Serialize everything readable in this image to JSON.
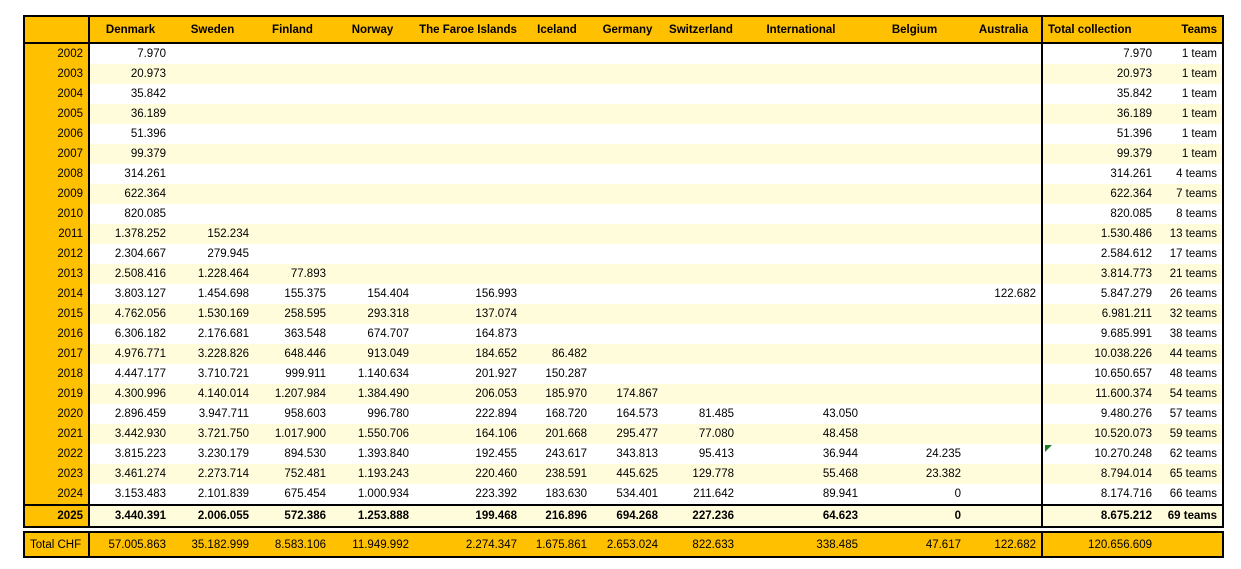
{
  "colors": {
    "header_orange": "#FFC000",
    "band_yellow": "#FFFCDB",
    "border_black": "#000000",
    "error_indicator_green": "#1E7B1E"
  },
  "table": {
    "corner_label": "",
    "columns": [
      "Denmark",
      "Sweden",
      "Finland",
      "Norway",
      "The Faroe Islands",
      "Iceland",
      "Germany",
      "Switzerland",
      "International",
      "Belgium",
      "Australia"
    ],
    "total_collection_header": "Total collection",
    "teams_header": "Teams",
    "rows": [
      {
        "year": "2002",
        "values": [
          "7.970",
          "",
          "",
          "",
          "",
          "",
          "",
          "",
          "",
          "",
          ""
        ],
        "total": "7.970",
        "teams": "1 team"
      },
      {
        "year": "2003",
        "values": [
          "20.973",
          "",
          "",
          "",
          "",
          "",
          "",
          "",
          "",
          "",
          ""
        ],
        "total": "20.973",
        "teams": "1 team"
      },
      {
        "year": "2004",
        "values": [
          "35.842",
          "",
          "",
          "",
          "",
          "",
          "",
          "",
          "",
          "",
          ""
        ],
        "total": "35.842",
        "teams": "1 team"
      },
      {
        "year": "2005",
        "values": [
          "36.189",
          "",
          "",
          "",
          "",
          "",
          "",
          "",
          "",
          "",
          ""
        ],
        "total": "36.189",
        "teams": "1 team"
      },
      {
        "year": "2006",
        "values": [
          "51.396",
          "",
          "",
          "",
          "",
          "",
          "",
          "",
          "",
          "",
          ""
        ],
        "total": "51.396",
        "teams": "1 team"
      },
      {
        "year": "2007",
        "values": [
          "99.379",
          "",
          "",
          "",
          "",
          "",
          "",
          "",
          "",
          "",
          ""
        ],
        "total": "99.379",
        "teams": "1 team"
      },
      {
        "year": "2008",
        "values": [
          "314.261",
          "",
          "",
          "",
          "",
          "",
          "",
          "",
          "",
          "",
          ""
        ],
        "total": "314.261",
        "teams": "4 teams"
      },
      {
        "year": "2009",
        "values": [
          "622.364",
          "",
          "",
          "",
          "",
          "",
          "",
          "",
          "",
          "",
          ""
        ],
        "total": "622.364",
        "teams": "7 teams"
      },
      {
        "year": "2010",
        "values": [
          "820.085",
          "",
          "",
          "",
          "",
          "",
          "",
          "",
          "",
          "",
          ""
        ],
        "total": "820.085",
        "teams": "8 teams"
      },
      {
        "year": "2011",
        "values": [
          "1.378.252",
          "152.234",
          "",
          "",
          "",
          "",
          "",
          "",
          "",
          "",
          ""
        ],
        "total": "1.530.486",
        "teams": "13 teams"
      },
      {
        "year": "2012",
        "values": [
          "2.304.667",
          "279.945",
          "",
          "",
          "",
          "",
          "",
          "",
          "",
          "",
          ""
        ],
        "total": "2.584.612",
        "teams": "17 teams"
      },
      {
        "year": "2013",
        "values": [
          "2.508.416",
          "1.228.464",
          "77.893",
          "",
          "",
          "",
          "",
          "",
          "",
          "",
          ""
        ],
        "total": "3.814.773",
        "teams": "21 teams"
      },
      {
        "year": "2014",
        "values": [
          "3.803.127",
          "1.454.698",
          "155.375",
          "154.404",
          "156.993",
          "",
          "",
          "",
          "",
          "",
          "122.682"
        ],
        "total": "5.847.279",
        "teams": "26 teams"
      },
      {
        "year": "2015",
        "values": [
          "4.762.056",
          "1.530.169",
          "258.595",
          "293.318",
          "137.074",
          "",
          "",
          "",
          "",
          "",
          ""
        ],
        "total": "6.981.211",
        "teams": "32 teams"
      },
      {
        "year": "2016",
        "values": [
          "6.306.182",
          "2.176.681",
          "363.548",
          "674.707",
          "164.873",
          "",
          "",
          "",
          "",
          "",
          ""
        ],
        "total": "9.685.991",
        "teams": "38 teams"
      },
      {
        "year": "2017",
        "values": [
          "4.976.771",
          "3.228.826",
          "648.446",
          "913.049",
          "184.652",
          "86.482",
          "",
          "",
          "",
          "",
          ""
        ],
        "total": "10.038.226",
        "teams": "44 teams"
      },
      {
        "year": "2018",
        "values": [
          "4.447.177",
          "3.710.721",
          "999.911",
          "1.140.634",
          "201.927",
          "150.287",
          "",
          "",
          "",
          "",
          ""
        ],
        "total": "10.650.657",
        "teams": "48 teams"
      },
      {
        "year": "2019",
        "values": [
          "4.300.996",
          "4.140.014",
          "1.207.984",
          "1.384.490",
          "206.053",
          "185.970",
          "174.867",
          "",
          "",
          "",
          ""
        ],
        "total": "11.600.374",
        "teams": "54 teams"
      },
      {
        "year": "2020",
        "values": [
          "2.896.459",
          "3.947.711",
          "958.603",
          "996.780",
          "222.894",
          "168.720",
          "164.573",
          "81.485",
          "43.050",
          "",
          ""
        ],
        "total": "9.480.276",
        "teams": "57 teams"
      },
      {
        "year": "2021",
        "values": [
          "3.442.930",
          "3.721.750",
          "1.017.900",
          "1.550.706",
          "164.106",
          "201.668",
          "295.477",
          "77.080",
          "48.458",
          "",
          ""
        ],
        "total": "10.520.073",
        "teams": "59 teams"
      },
      {
        "year": "2022",
        "values": [
          "3.815.223",
          "3.230.179",
          "894.530",
          "1.393.840",
          "192.455",
          "243.617",
          "343.813",
          "95.413",
          "36.944",
          "24.235",
          ""
        ],
        "total": "10.270.248",
        "teams": "62 teams",
        "error_indicator": true
      },
      {
        "year": "2023",
        "values": [
          "3.461.274",
          "2.273.714",
          "752.481",
          "1.193.243",
          "220.460",
          "238.591",
          "445.625",
          "129.778",
          "55.468",
          "23.382",
          ""
        ],
        "total": "8.794.014",
        "teams": "65 teams"
      },
      {
        "year": "2024",
        "values": [
          "3.153.483",
          "2.101.839",
          "675.454",
          "1.000.934",
          "223.392",
          "183.630",
          "534.401",
          "211.642",
          "89.941",
          "0",
          ""
        ],
        "total": "8.174.716",
        "teams": "66 teams"
      },
      {
        "year": "2025",
        "values": [
          "3.440.391",
          "2.006.055",
          "572.386",
          "1.253.888",
          "199.468",
          "216.896",
          "694.268",
          "227.236",
          "64.623",
          "0",
          ""
        ],
        "total": "8.675.212",
        "teams": "69 teams",
        "final": true
      }
    ],
    "total_row": {
      "label": "Total CHF",
      "values": [
        "57.005.863",
        "35.182.999",
        "8.583.106",
        "11.949.992",
        "2.274.347",
        "1.675.861",
        "2.653.024",
        "822.633",
        "338.485",
        "47.617",
        "122.682"
      ],
      "total": "120.656.609",
      "teams": ""
    }
  }
}
